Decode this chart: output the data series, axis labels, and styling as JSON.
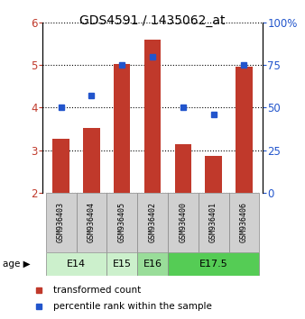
{
  "title": "GDS4591 / 1435062_at",
  "samples": [
    "GSM936403",
    "GSM936404",
    "GSM936405",
    "GSM936402",
    "GSM936400",
    "GSM936401",
    "GSM936406"
  ],
  "transformed_counts": [
    3.28,
    3.52,
    5.02,
    5.6,
    3.15,
    2.87,
    4.95
  ],
  "percentile_ranks": [
    50,
    57,
    75,
    80,
    50,
    46,
    75
  ],
  "bar_bottom": 2.0,
  "ylim_left": [
    2,
    6
  ],
  "ylim_right": [
    0,
    100
  ],
  "yticks_left": [
    2,
    3,
    4,
    5,
    6
  ],
  "yticks_right": [
    0,
    25,
    50,
    75,
    100
  ],
  "bar_color": "#c0392b",
  "dot_color": "#2255cc",
  "age_groups": [
    {
      "label": "E14",
      "span": [
        0,
        2
      ],
      "color": "#ccf0cc"
    },
    {
      "label": "E15",
      "span": [
        2,
        3
      ],
      "color": "#ccf0cc"
    },
    {
      "label": "E16",
      "span": [
        3,
        4
      ],
      "color": "#99dd99"
    },
    {
      "label": "E17.5",
      "span": [
        4,
        7
      ],
      "color": "#55cc55"
    }
  ],
  "sample_bg_color": "#d0d0d0",
  "legend_bar_label": "transformed count",
  "legend_dot_label": "percentile rank within the sample",
  "bar_width": 0.55,
  "title_fontsize": 10
}
